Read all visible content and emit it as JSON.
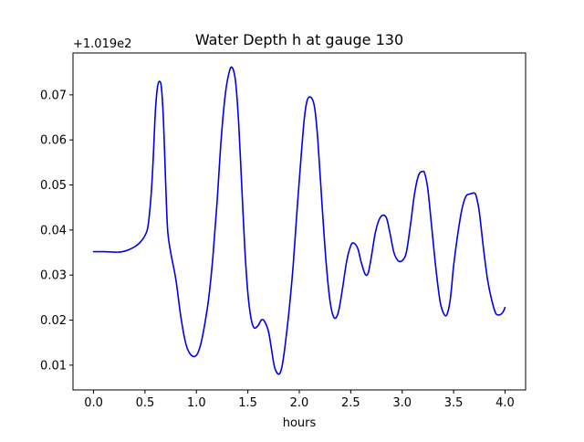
{
  "chart_data": {
    "type": "line",
    "title": "Water Depth h at gauge 130",
    "xlabel": "hours",
    "ylabel": "",
    "y_offset_label": "+1.019e2",
    "xlim": [
      -0.2,
      4.2
    ],
    "ylim": [
      0.0045,
      0.0793
    ],
    "x_ticks": [
      0.0,
      0.5,
      1.0,
      1.5,
      2.0,
      2.5,
      3.0,
      3.5,
      4.0
    ],
    "x_tick_labels": [
      "0.0",
      "0.5",
      "1.0",
      "1.5",
      "2.0",
      "2.5",
      "3.0",
      "3.5",
      "4.0"
    ],
    "y_ticks": [
      0.01,
      0.02,
      0.03,
      0.04,
      0.05,
      0.06,
      0.07
    ],
    "y_tick_labels": [
      "0.01",
      "0.02",
      "0.03",
      "0.04",
      "0.05",
      "0.06",
      "0.07"
    ],
    "grid": false,
    "legend": "none",
    "line_color": "#0000ee",
    "series": [
      {
        "x": [
          0.0,
          0.1,
          0.2,
          0.25,
          0.3,
          0.35,
          0.4,
          0.45,
          0.5,
          0.53,
          0.56,
          0.58,
          0.6,
          0.62,
          0.64,
          0.66,
          0.68,
          0.7,
          0.72,
          0.75,
          0.8,
          0.85,
          0.9,
          0.95,
          1.0,
          1.04,
          1.08,
          1.12,
          1.16,
          1.2,
          1.24,
          1.28,
          1.32,
          1.35,
          1.38,
          1.41,
          1.44,
          1.47,
          1.5,
          1.53,
          1.56,
          1.6,
          1.63,
          1.66,
          1.7,
          1.73,
          1.76,
          1.8,
          1.83,
          1.86,
          1.9,
          1.94,
          1.98,
          2.02,
          2.05,
          2.08,
          2.12,
          2.15,
          2.18,
          2.22,
          2.26,
          2.3,
          2.34,
          2.38,
          2.42,
          2.46,
          2.5,
          2.53,
          2.57,
          2.6,
          2.64,
          2.67,
          2.7,
          2.74,
          2.78,
          2.82,
          2.85,
          2.88,
          2.92,
          2.96,
          3.0,
          3.04,
          3.08,
          3.12,
          3.16,
          3.2,
          3.22,
          3.25,
          3.29,
          3.33,
          3.37,
          3.41,
          3.44,
          3.47,
          3.5,
          3.54,
          3.58,
          3.62,
          3.66,
          3.7,
          3.72,
          3.75,
          3.79,
          3.83,
          3.87,
          3.91,
          3.95,
          3.98,
          4.0
        ],
        "y": [
          0.0352,
          0.0352,
          0.0351,
          0.0351,
          0.0353,
          0.0357,
          0.0363,
          0.0372,
          0.0388,
          0.041,
          0.048,
          0.056,
          0.066,
          0.0715,
          0.073,
          0.0715,
          0.064,
          0.051,
          0.04,
          0.035,
          0.029,
          0.0205,
          0.0145,
          0.0122,
          0.0122,
          0.0145,
          0.019,
          0.025,
          0.034,
          0.046,
          0.06,
          0.07,
          0.0752,
          0.076,
          0.073,
          0.064,
          0.05,
          0.036,
          0.026,
          0.0205,
          0.0183,
          0.0188,
          0.02,
          0.0198,
          0.0175,
          0.0135,
          0.0095,
          0.008,
          0.0095,
          0.014,
          0.022,
          0.032,
          0.045,
          0.057,
          0.065,
          0.069,
          0.0693,
          0.067,
          0.06,
          0.046,
          0.033,
          0.024,
          0.0205,
          0.0218,
          0.027,
          0.033,
          0.0365,
          0.0371,
          0.0358,
          0.033,
          0.0302,
          0.0305,
          0.034,
          0.0395,
          0.0425,
          0.0433,
          0.0425,
          0.0395,
          0.035,
          0.0332,
          0.0332,
          0.035,
          0.041,
          0.048,
          0.0522,
          0.053,
          0.0525,
          0.049,
          0.04,
          0.031,
          0.024,
          0.0212,
          0.0215,
          0.025,
          0.032,
          0.039,
          0.0445,
          0.0475,
          0.048,
          0.0482,
          0.0475,
          0.044,
          0.036,
          0.029,
          0.0245,
          0.0215,
          0.0212,
          0.0218,
          0.0228
        ]
      }
    ]
  }
}
